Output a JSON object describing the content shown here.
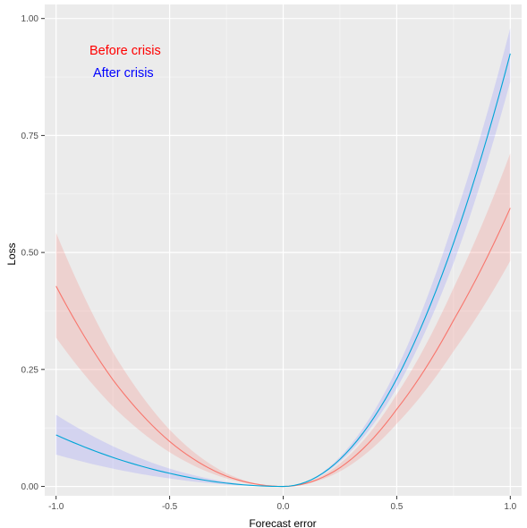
{
  "chart_data": {
    "type": "line",
    "title": "",
    "xlabel": "Forecast error",
    "ylabel": "Loss",
    "xlim": [
      -1.05,
      1.05
    ],
    "ylim": [
      -0.02,
      1.03
    ],
    "xticks": [
      -1.0,
      -0.5,
      0.0,
      0.5,
      1.0
    ],
    "xtick_labels": [
      "-1.0",
      "-0.5",
      "0.0",
      "0.5",
      "1.0"
    ],
    "yticks": [
      0.0,
      0.25,
      0.5,
      0.75,
      1.0
    ],
    "ytick_labels": [
      "0.00",
      "0.25",
      "0.50",
      "0.75",
      "1.00"
    ],
    "grid": true,
    "legend_position": "top-left",
    "background_color": "#ebebeb",
    "grid_color": "#ffffff",
    "series": [
      {
        "name": "Before crisis",
        "label_color": "#ff0000",
        "line_color": "#f8766d",
        "band_color": "#f8766d",
        "x": [
          -1.0,
          -0.75,
          -0.5,
          -0.25,
          0.0,
          0.25,
          0.5,
          0.75,
          1.0
        ],
        "y": [
          0.428,
          0.228,
          0.096,
          0.022,
          0.0,
          0.04,
          0.165,
          0.355,
          0.595
        ],
        "lower": [
          0.318,
          0.171,
          0.073,
          0.017,
          0.0,
          0.032,
          0.134,
          0.289,
          0.482
        ],
        "upper": [
          0.542,
          0.287,
          0.121,
          0.028,
          0.0,
          0.049,
          0.197,
          0.424,
          0.712
        ]
      },
      {
        "name": "After crisis",
        "label_color": "#0000ff",
        "line_color": "#00a5d6",
        "band_color": "#8080ff",
        "x": [
          -1.0,
          -0.75,
          -0.5,
          -0.25,
          0.0,
          0.25,
          0.5,
          0.75,
          1.0
        ],
        "y": [
          0.11,
          0.062,
          0.028,
          0.007,
          0.0,
          0.058,
          0.23,
          0.52,
          0.925
        ],
        "lower": [
          0.068,
          0.038,
          0.017,
          0.004,
          0.0,
          0.053,
          0.21,
          0.477,
          0.865
        ],
        "upper": [
          0.153,
          0.086,
          0.038,
          0.01,
          0.0,
          0.063,
          0.251,
          0.566,
          0.98
        ]
      }
    ]
  }
}
